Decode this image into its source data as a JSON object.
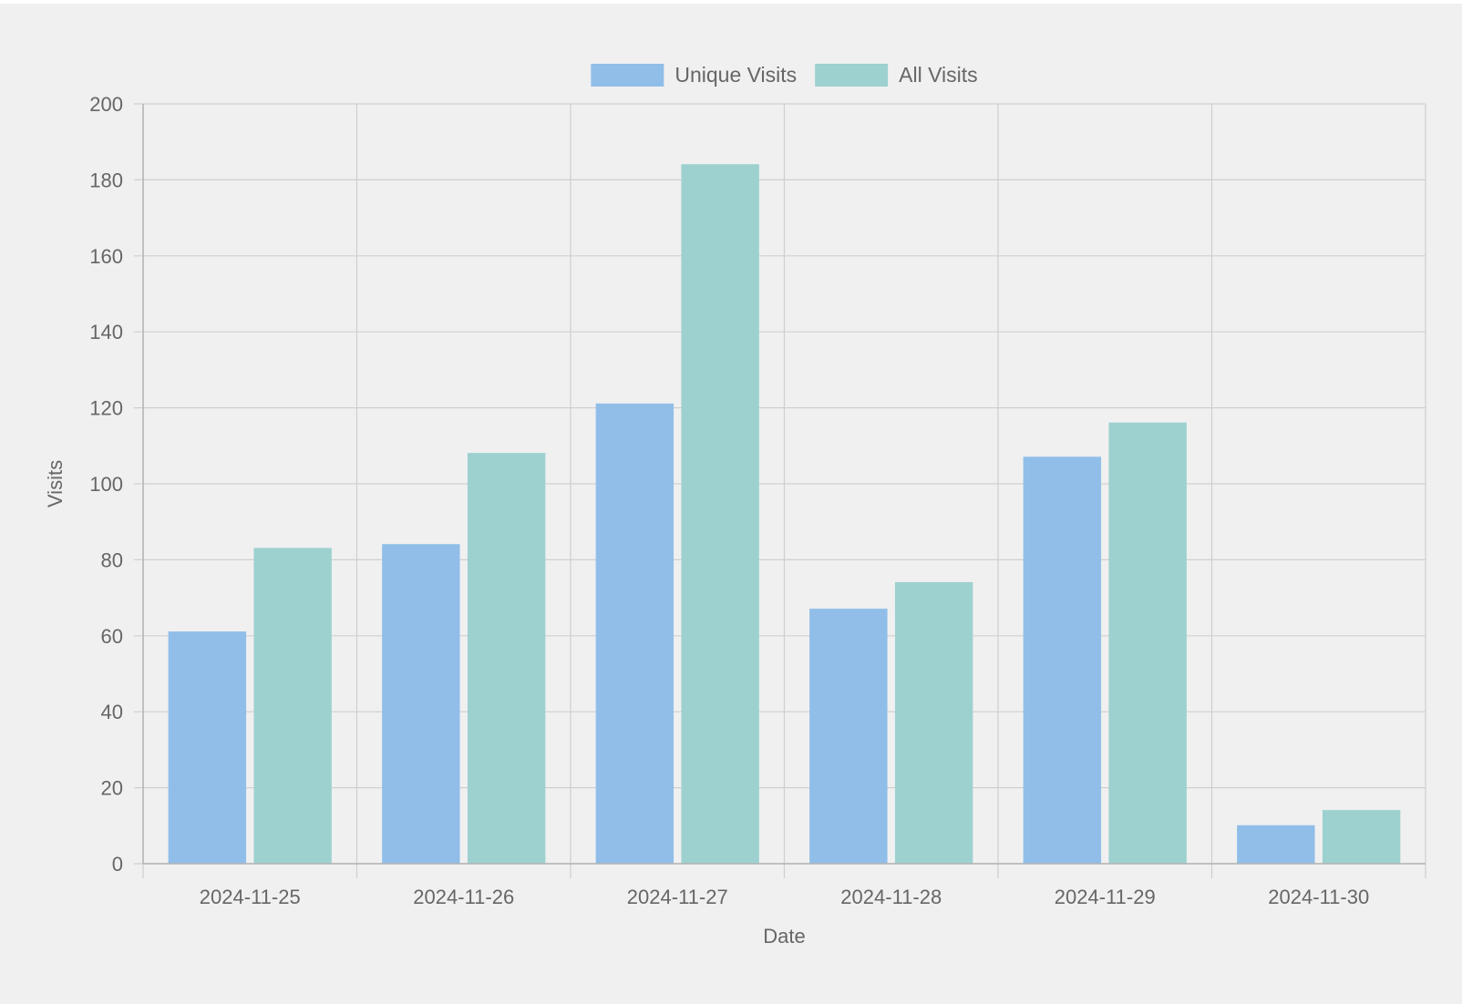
{
  "chart_data": {
    "type": "bar",
    "categories": [
      "2024-11-25",
      "2024-11-26",
      "2024-11-27",
      "2024-11-28",
      "2024-11-29",
      "2024-11-30"
    ],
    "series": [
      {
        "name": "Unique Visits",
        "color": "#90bee9",
        "values": [
          61,
          84,
          121,
          67,
          107,
          10
        ]
      },
      {
        "name": "All Visits",
        "color": "#9dd1d0",
        "values": [
          83,
          108,
          184,
          74,
          116,
          14
        ]
      }
    ],
    "xlabel": "Date",
    "ylabel": "Visits",
    "ylim": [
      0,
      200
    ],
    "yticks": [
      0,
      20,
      40,
      60,
      80,
      100,
      120,
      140,
      160,
      180,
      200
    ],
    "grid": true,
    "legend_position": "top-center"
  }
}
